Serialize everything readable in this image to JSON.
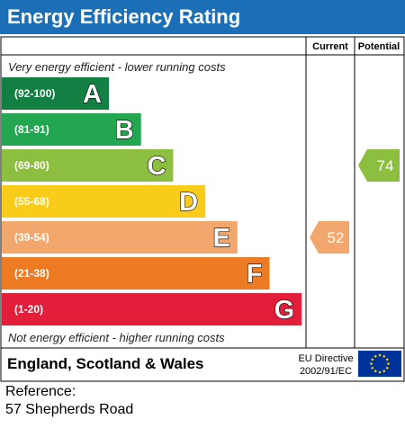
{
  "title": "Energy Efficiency Rating",
  "columns": {
    "current": "Current",
    "potential": "Potential"
  },
  "top_note": "Very energy efficient - lower running costs",
  "bottom_note": "Not energy efficient - higher running costs",
  "footer": {
    "region": "England, Scotland & Wales",
    "directive_line1": "EU Directive",
    "directive_line2": "2002/91/EC",
    "flag_colors": {
      "background": "#003399",
      "stars": "#ffcc00"
    }
  },
  "reference": {
    "label": "Reference:",
    "address": "57 Shepherds Road"
  },
  "chart_data": {
    "type": "bar",
    "title": "Energy Efficiency Rating",
    "categories": [
      "A",
      "B",
      "C",
      "D",
      "E",
      "F",
      "G"
    ],
    "bands": [
      {
        "letter": "A",
        "range": "(92-100)",
        "color": "#128042"
      },
      {
        "letter": "B",
        "range": "(81-91)",
        "color": "#22a650"
      },
      {
        "letter": "C",
        "range": "(69-80)",
        "color": "#8cbe3f"
      },
      {
        "letter": "D",
        "range": "(55-68)",
        "color": "#f9cc1a"
      },
      {
        "letter": "E",
        "range": "(39-54)",
        "color": "#f2a86c"
      },
      {
        "letter": "F",
        "range": "(21-38)",
        "color": "#ec7b24"
      },
      {
        "letter": "G",
        "range": "(1-20)",
        "color": "#e31e3b"
      }
    ],
    "series": [
      {
        "name": "Current",
        "value": 52,
        "band": "E",
        "color": "#f2a86c"
      },
      {
        "name": "Potential",
        "value": 74,
        "band": "C",
        "color": "#8cbe3f"
      }
    ]
  }
}
